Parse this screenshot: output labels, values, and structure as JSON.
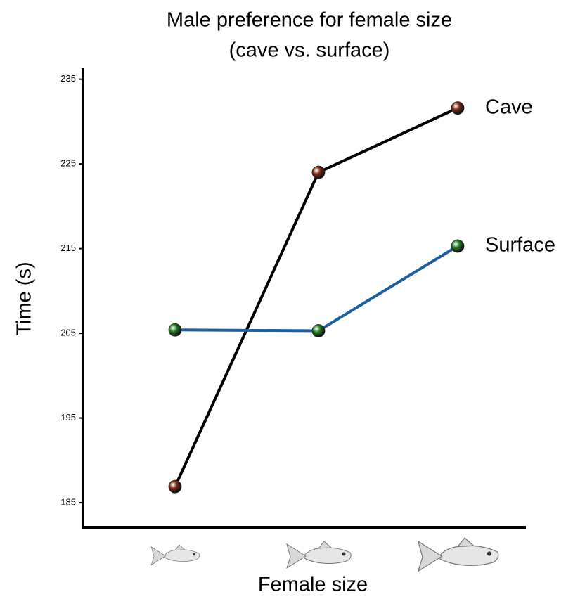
{
  "chart_data": {
    "type": "line",
    "title": [
      "Male preference for female size",
      "(cave vs. surface)"
    ],
    "y_label": "Time (s)",
    "x_label": "Female size",
    "categories": [
      null,
      null,
      null
    ],
    "series": [
      {
        "name": "Cave",
        "color": "#000000",
        "marker_color": "#7a2a12",
        "values": [
          186.9,
          224,
          231.6
        ]
      },
      {
        "name": "Surface",
        "color": "#1f5fa0",
        "marker_color": "#1f7a1f",
        "values": [
          205.4,
          205.3,
          215.3
        ]
      }
    ],
    "ylim": [
      182.1,
      236.3
    ],
    "yticks": [
      185,
      195,
      205,
      215,
      225,
      235
    ],
    "grid": false
  }
}
